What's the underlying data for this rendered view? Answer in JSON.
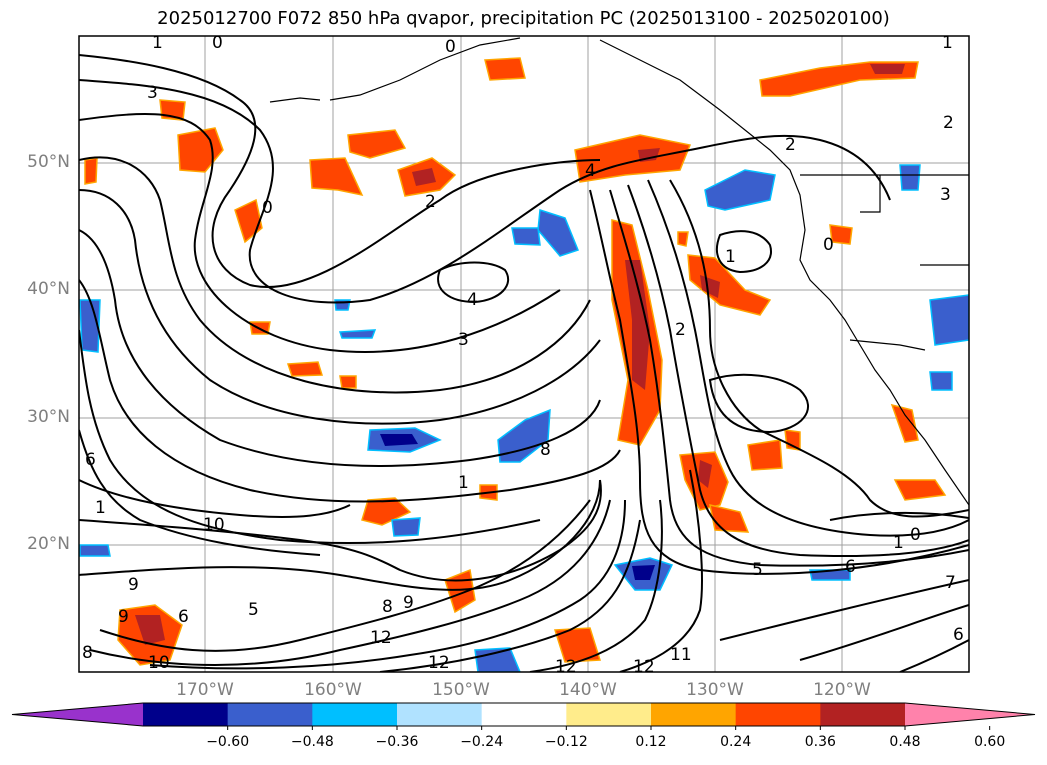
{
  "title": "2025012700 F072 850 hPa qvapor, precipitation PC (2025013100 - 2025020100)",
  "lat_labels": [
    "50°N",
    "40°N",
    "30°N",
    "20°N"
  ],
  "lon_labels": [
    "170°W",
    "160°W",
    "150°W",
    "140°W",
    "130°W",
    "120°W"
  ],
  "colorbar": {
    "ticks": [
      "−0.60",
      "−0.48",
      "−0.36",
      "−0.24",
      "−0.12",
      "0.12",
      "0.24",
      "0.36",
      "0.48",
      "0.60"
    ],
    "colors": [
      "#9932cc",
      "#00008b",
      "#3a5fcd",
      "#00bfff",
      "#b0e2ff",
      "#ffffff",
      "#ffec8b",
      "#ffa500",
      "#ff4500",
      "#b22222",
      "#ff82ab"
    ]
  },
  "contour_labels": [
    "1",
    "0",
    "0",
    "1",
    "3",
    "2",
    "4",
    "2",
    "0",
    "4",
    "3",
    "2",
    "1",
    "2",
    "3",
    "0",
    "6",
    "1",
    "10",
    "8",
    "9",
    "6",
    "5",
    "9",
    "8",
    "8",
    "9",
    "10",
    "12",
    "12",
    "12",
    "12",
    "11",
    "5",
    "6",
    "7",
    "6",
    "1",
    "0",
    "1"
  ]
}
